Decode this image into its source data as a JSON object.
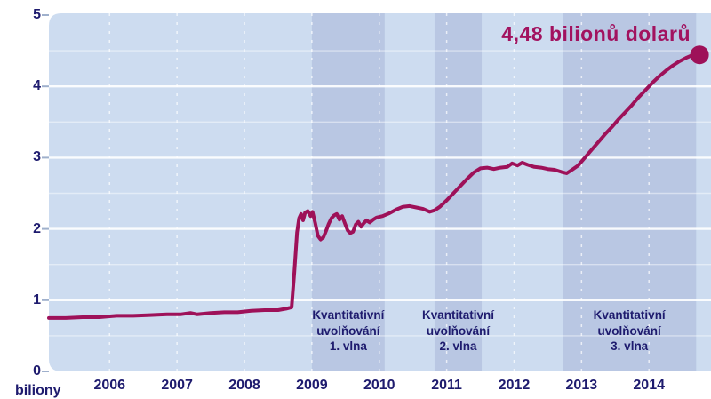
{
  "chart_data": {
    "type": "line",
    "title": "",
    "unit_label": "biliony",
    "end_annotation": {
      "text": "4,48 bilionů dolarů",
      "value": 4.48
    },
    "x_ticks": [
      2006,
      2007,
      2008,
      2009,
      2010,
      2011,
      2012,
      2013,
      2014
    ],
    "y_ticks": [
      0,
      1,
      2,
      3,
      4,
      5
    ],
    "xlim": [
      2005.1,
      2014.92
    ],
    "ylim": [
      0,
      5
    ],
    "grid": true,
    "qe_bands": [
      {
        "from": 2009.0,
        "to": 2010.08,
        "label_lines": [
          "Kvantitativní",
          "uvolňování",
          "1. vlna"
        ]
      },
      {
        "from": 2010.82,
        "to": 2011.52,
        "label_lines": [
          "Kvantitativní",
          "uvolňování",
          "2. vlna"
        ]
      },
      {
        "from": 2012.72,
        "to": 2014.7,
        "label_lines": [
          "Kvantitativní",
          "uvolňování",
          "3. vlna"
        ]
      }
    ],
    "series": [
      {
        "points": [
          [
            2005.1,
            0.75
          ],
          [
            2005.35,
            0.75
          ],
          [
            2005.6,
            0.76
          ],
          [
            2005.85,
            0.76
          ],
          [
            2006.1,
            0.78
          ],
          [
            2006.35,
            0.78
          ],
          [
            2006.6,
            0.79
          ],
          [
            2006.85,
            0.8
          ],
          [
            2007.05,
            0.8
          ],
          [
            2007.2,
            0.82
          ],
          [
            2007.3,
            0.8
          ],
          [
            2007.5,
            0.82
          ],
          [
            2007.7,
            0.83
          ],
          [
            2007.9,
            0.83
          ],
          [
            2008.1,
            0.85
          ],
          [
            2008.3,
            0.86
          ],
          [
            2008.5,
            0.86
          ],
          [
            2008.62,
            0.88
          ],
          [
            2008.7,
            0.9
          ],
          [
            2008.74,
            1.4
          ],
          [
            2008.78,
            1.95
          ],
          [
            2008.81,
            2.15
          ],
          [
            2008.84,
            2.21
          ],
          [
            2008.87,
            2.12
          ],
          [
            2008.9,
            2.23
          ],
          [
            2008.94,
            2.25
          ],
          [
            2008.98,
            2.18
          ],
          [
            2009.01,
            2.24
          ],
          [
            2009.05,
            2.08
          ],
          [
            2009.09,
            1.9
          ],
          [
            2009.13,
            1.85
          ],
          [
            2009.17,
            1.88
          ],
          [
            2009.21,
            1.97
          ],
          [
            2009.25,
            2.07
          ],
          [
            2009.29,
            2.15
          ],
          [
            2009.33,
            2.19
          ],
          [
            2009.37,
            2.21
          ],
          [
            2009.41,
            2.13
          ],
          [
            2009.45,
            2.18
          ],
          [
            2009.49,
            2.08
          ],
          [
            2009.53,
            1.98
          ],
          [
            2009.57,
            1.94
          ],
          [
            2009.61,
            1.96
          ],
          [
            2009.65,
            2.06
          ],
          [
            2009.69,
            2.1
          ],
          [
            2009.73,
            2.03
          ],
          [
            2009.77,
            2.08
          ],
          [
            2009.81,
            2.12
          ],
          [
            2009.86,
            2.09
          ],
          [
            2009.91,
            2.13
          ],
          [
            2009.96,
            2.16
          ],
          [
            2010.05,
            2.18
          ],
          [
            2010.15,
            2.22
          ],
          [
            2010.25,
            2.27
          ],
          [
            2010.35,
            2.31
          ],
          [
            2010.45,
            2.32
          ],
          [
            2010.55,
            2.3
          ],
          [
            2010.65,
            2.28
          ],
          [
            2010.75,
            2.24
          ],
          [
            2010.82,
            2.26
          ],
          [
            2010.9,
            2.31
          ],
          [
            2011.0,
            2.4
          ],
          [
            2011.1,
            2.5
          ],
          [
            2011.2,
            2.6
          ],
          [
            2011.3,
            2.7
          ],
          [
            2011.4,
            2.79
          ],
          [
            2011.5,
            2.85
          ],
          [
            2011.6,
            2.86
          ],
          [
            2011.7,
            2.84
          ],
          [
            2011.8,
            2.86
          ],
          [
            2011.9,
            2.87
          ],
          [
            2011.97,
            2.92
          ],
          [
            2012.05,
            2.89
          ],
          [
            2012.12,
            2.93
          ],
          [
            2012.2,
            2.9
          ],
          [
            2012.3,
            2.87
          ],
          [
            2012.4,
            2.86
          ],
          [
            2012.5,
            2.84
          ],
          [
            2012.6,
            2.83
          ],
          [
            2012.7,
            2.8
          ],
          [
            2012.78,
            2.78
          ],
          [
            2012.86,
            2.83
          ],
          [
            2012.95,
            2.89
          ],
          [
            2013.05,
            3.0
          ],
          [
            2013.15,
            3.11
          ],
          [
            2013.25,
            3.22
          ],
          [
            2013.35,
            3.33
          ],
          [
            2013.45,
            3.43
          ],
          [
            2013.55,
            3.54
          ],
          [
            2013.65,
            3.64
          ],
          [
            2013.75,
            3.74
          ],
          [
            2013.85,
            3.85
          ],
          [
            2013.95,
            3.95
          ],
          [
            2014.05,
            4.05
          ],
          [
            2014.15,
            4.14
          ],
          [
            2014.25,
            4.22
          ],
          [
            2014.35,
            4.29
          ],
          [
            2014.45,
            4.35
          ],
          [
            2014.55,
            4.4
          ],
          [
            2014.65,
            4.44
          ],
          [
            2014.75,
            4.48
          ]
        ]
      }
    ],
    "colors": {
      "line": "#9e1159",
      "end_dot": "#9e1159",
      "annotation_text": "#a2125f",
      "plot_bg": "#cddcf0",
      "qe_band": "#b9c7e3",
      "axis_text": "#1e1b6e",
      "grid": "#ffffff",
      "tick": "#9fb0cc"
    }
  }
}
